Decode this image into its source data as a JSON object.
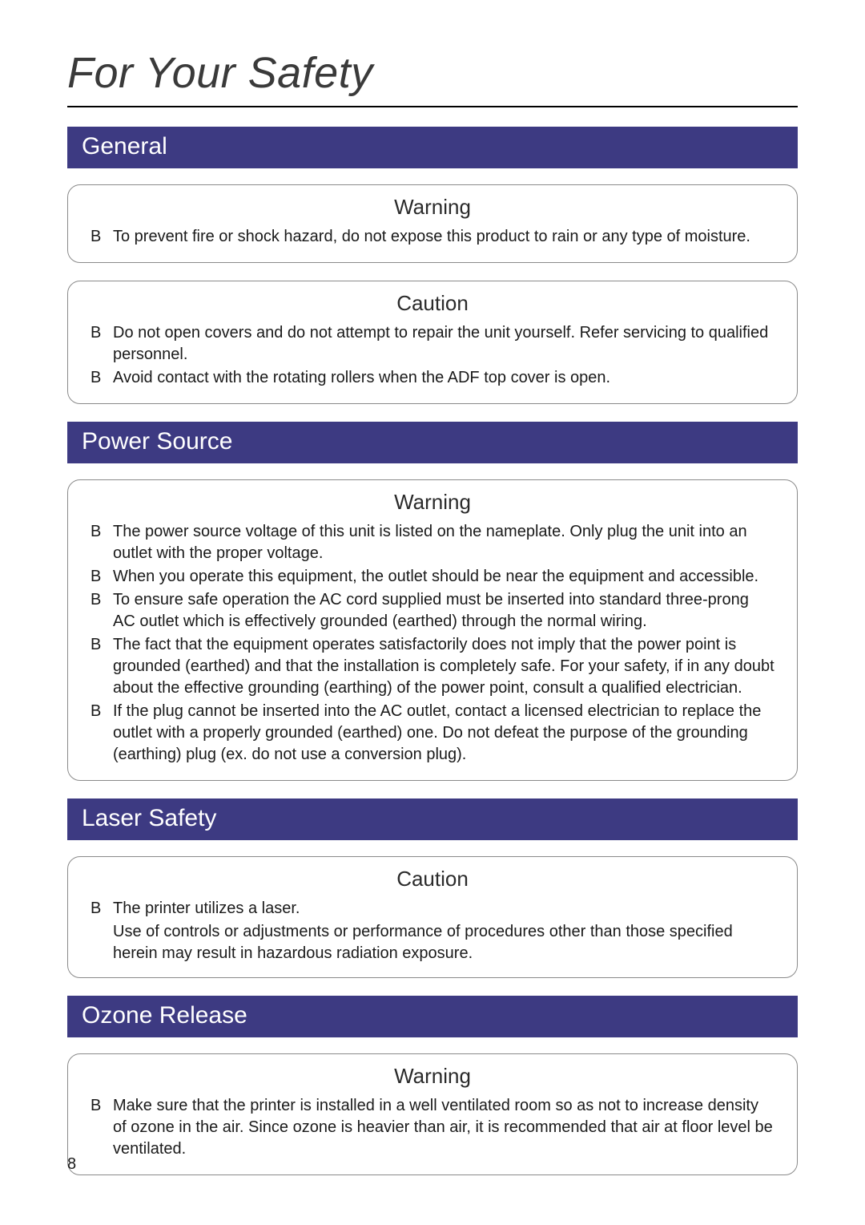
{
  "page": {
    "title": "For Your Safety",
    "number": "8"
  },
  "colors": {
    "header_bg": "#3d3a82",
    "header_text": "#ffffff",
    "title_text": "#3a3a3a",
    "body_text": "#1a1a1a",
    "box_border": "#8a8a8a",
    "page_bg": "#ffffff",
    "title_underline": "#000000"
  },
  "typography": {
    "title_fontsize_pt": 40,
    "title_style": "italic",
    "section_header_fontsize_pt": 22,
    "notice_title_fontsize_pt": 19,
    "body_fontsize_pt": 15,
    "font_family": "Arial"
  },
  "sections": {
    "general": {
      "header": "General",
      "warning": {
        "title": "Warning",
        "items": [
          "To prevent fire or shock hazard, do not expose this product to rain or any type of moisture."
        ]
      },
      "caution": {
        "title": "Caution",
        "items": [
          "Do not open covers and do not attempt to repair the unit yourself. Refer servicing to qualified personnel.",
          "Avoid contact with the rotating rollers when the ADF top cover is open."
        ]
      }
    },
    "power_source": {
      "header": "Power Source",
      "warning": {
        "title": "Warning",
        "items": [
          "The power source voltage of this unit is listed on the nameplate. Only plug the unit into an outlet with the proper voltage.",
          "When you operate this equipment, the outlet should be near the equipment and accessible.",
          "To ensure safe operation the AC cord supplied must be inserted into standard three-prong AC outlet which is effectively grounded (earthed) through the normal wiring.",
          "The fact that the equipment operates satisfactorily does not imply that the power point is grounded (earthed) and that the installation is completely safe. For your safety, if in any doubt about the effective grounding (earthing) of the power point, consult a qualified electrician.",
          "If the plug cannot be inserted into the AC outlet, contact a licensed electrician to replace the outlet with a properly grounded (earthed) one. Do not defeat the purpose of the grounding (earthing) plug (ex. do not use a conversion plug)."
        ]
      }
    },
    "laser_safety": {
      "header": "Laser Safety",
      "caution": {
        "title": "Caution",
        "items": [
          "The printer utilizes a laser."
        ],
        "sub": "Use of controls or adjustments or performance of procedures other than those specified herein may result in hazardous radiation exposure."
      }
    },
    "ozone_release": {
      "header": "Ozone Release",
      "warning": {
        "title": "Warning",
        "items": [
          "Make sure that the printer is installed in a well ventilated room so as not to increase density of ozone in the air. Since ozone is heavier than air, it is recommended that air at floor level be ventilated."
        ]
      }
    }
  }
}
